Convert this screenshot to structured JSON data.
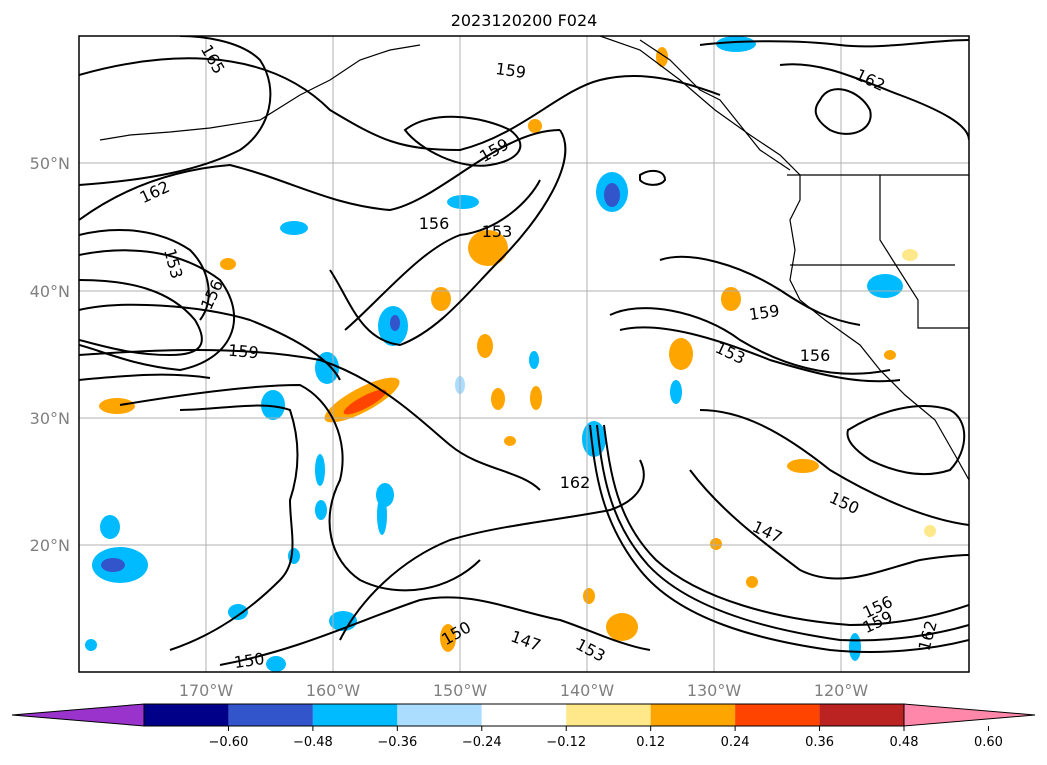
{
  "title": "2023120200 F024",
  "lat_labels": [
    "50°N",
    "40°N",
    "30°N",
    "20°N"
  ],
  "lon_labels": [
    "170°W",
    "160°W",
    "150°W",
    "140°W",
    "130°W",
    "120°W"
  ],
  "colorbar": {
    "ticks": [
      "−0.60",
      "−0.48",
      "−0.36",
      "−0.24",
      "−0.12",
      "0.12",
      "0.24",
      "0.36",
      "0.48",
      "0.60"
    ],
    "colors": [
      "#9933cc",
      "#000088",
      "#3355cc",
      "#00bbff",
      "#aaddff",
      "#ffffff",
      "#ffe88a",
      "#ffa500",
      "#ff4400",
      "#bb2222",
      "#ff88aa"
    ]
  },
  "contour_labels": [
    "165",
    "159",
    "162",
    "159",
    "156",
    "153",
    "162",
    "153",
    "156",
    "159",
    "159",
    "153",
    "156",
    "162",
    "150",
    "147",
    "150",
    "147",
    "153",
    "156",
    "159",
    "162",
    "150"
  ]
}
